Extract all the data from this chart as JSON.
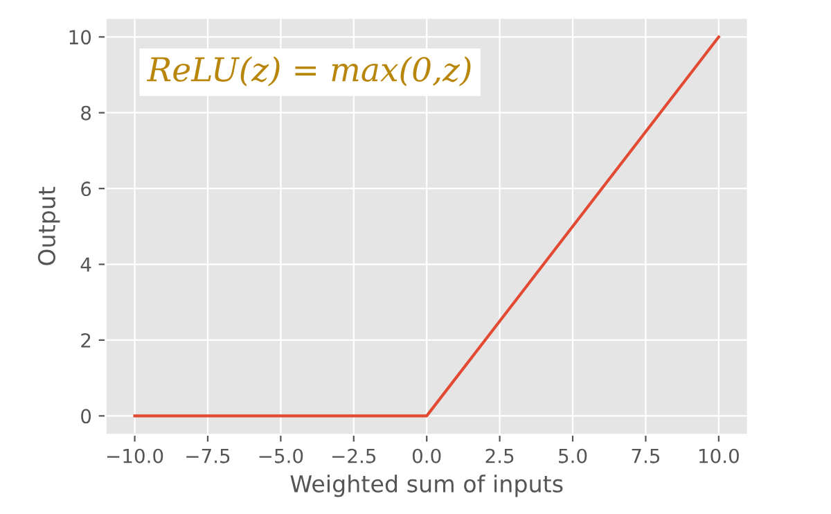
{
  "chart_data": {
    "type": "line",
    "xlabel": "Weighted sum of inputs",
    "ylabel": "Output",
    "annotations": [
      "ReLU(z) = max(0,z)"
    ],
    "x": [
      -10,
      0,
      10
    ],
    "series": [
      {
        "color": "#e24a33",
        "values": [
          0,
          0,
          10
        ]
      }
    ],
    "xlim": [
      -11,
      11
    ],
    "xticks": [
      {
        "value": -10,
        "label": "−10.0"
      },
      {
        "value": -7.5,
        "label": "−7.5"
      },
      {
        "value": -5,
        "label": "−5.0"
      },
      {
        "value": -2.5,
        "label": "−2.5"
      },
      {
        "value": 0,
        "label": "0.0"
      },
      {
        "value": 2.5,
        "label": "2.5"
      },
      {
        "value": 5,
        "label": "5.0"
      },
      {
        "value": 7.5,
        "label": "7.5"
      },
      {
        "value": 10,
        "label": "10.0"
      }
    ],
    "ylim": [
      -0.5,
      10.5
    ],
    "yticks": [
      0,
      2,
      4,
      6,
      8,
      10
    ],
    "grid": true,
    "legend": false,
    "marker": "none",
    "line_style": "solid"
  }
}
